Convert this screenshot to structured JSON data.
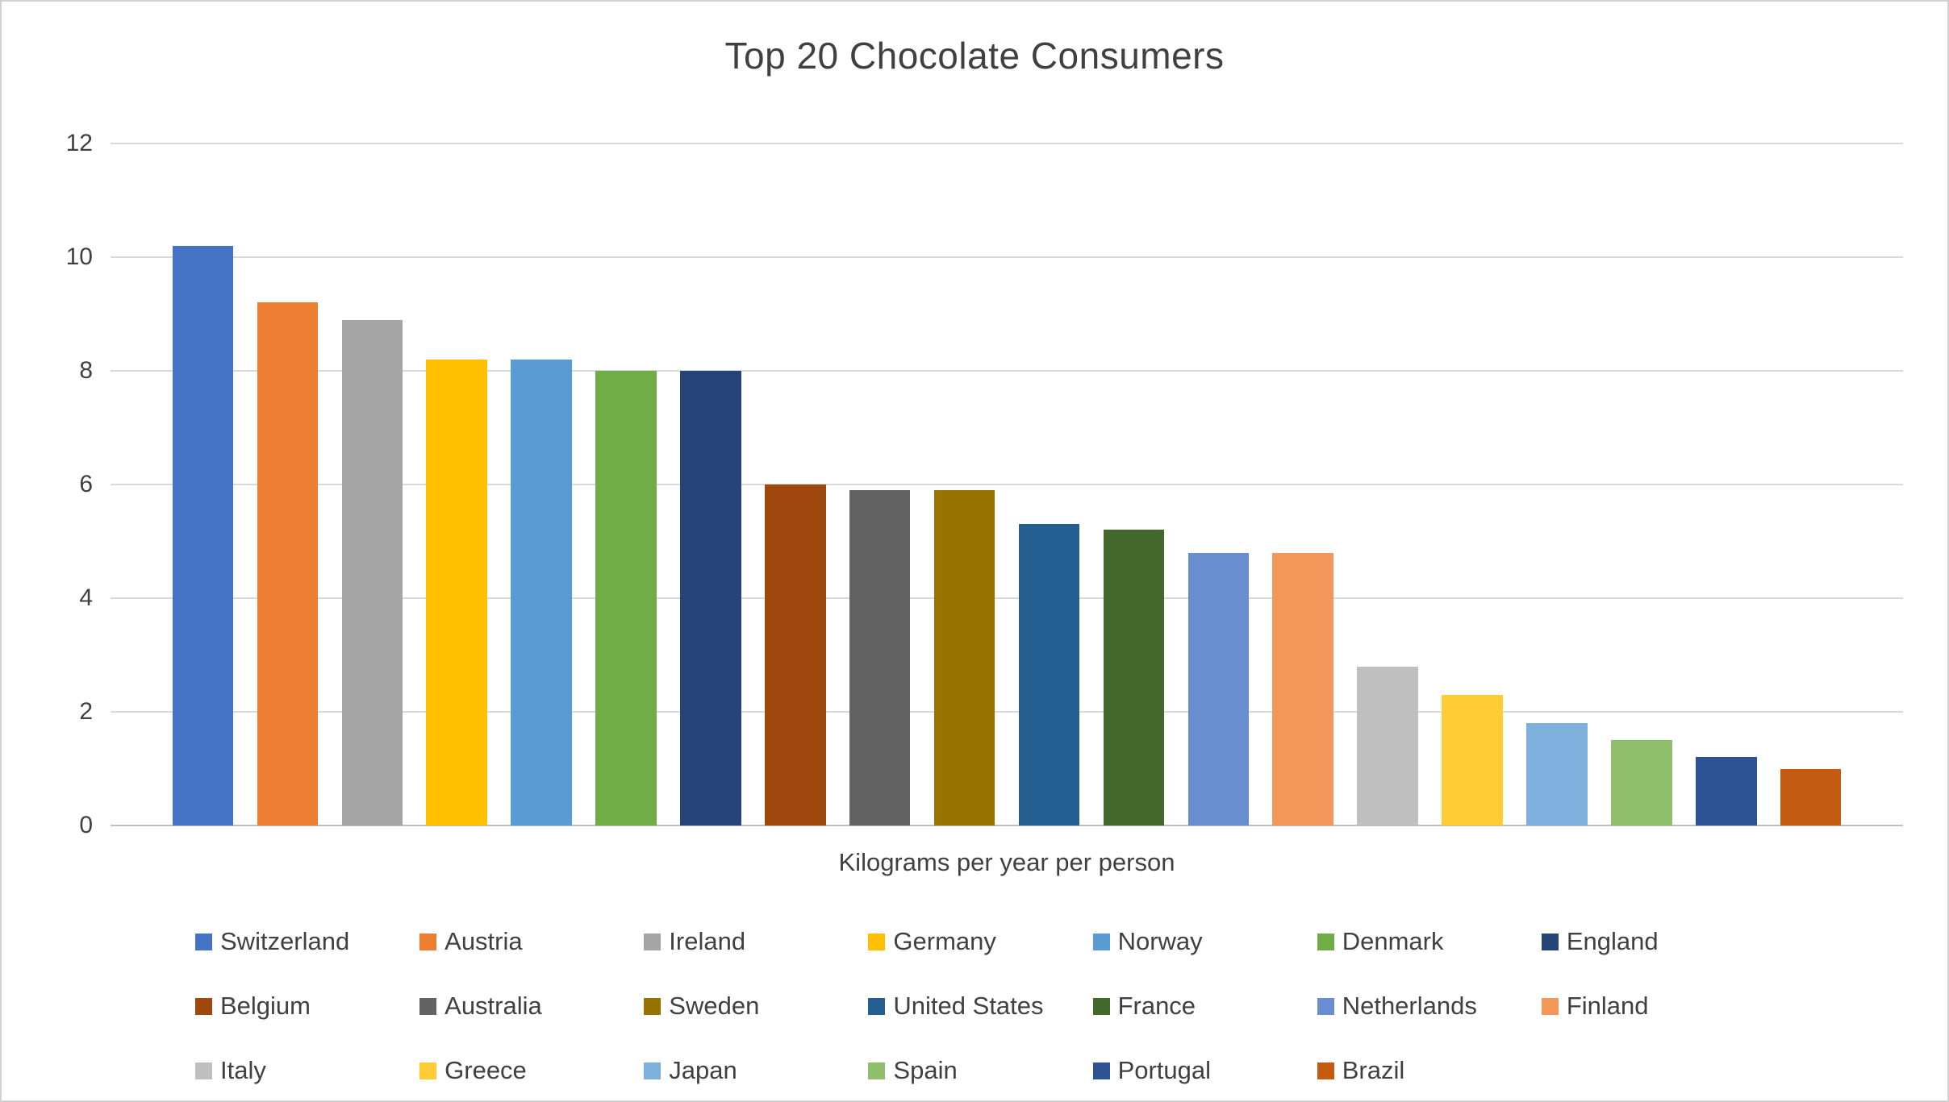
{
  "chart_data": {
    "type": "bar",
    "title": "Top 20 Chocolate Consumers",
    "xlabel": "Kilograms per year per person",
    "ylabel": "",
    "ylim": [
      0,
      12
    ],
    "yticks": [
      0,
      2,
      4,
      6,
      8,
      10,
      12
    ],
    "grid": true,
    "legend_position": "bottom",
    "series": [
      {
        "name": "Switzerland",
        "value": 10.2,
        "color": "#4472C4"
      },
      {
        "name": "Austria",
        "value": 9.2,
        "color": "#ED7D31"
      },
      {
        "name": "Ireland",
        "value": 8.9,
        "color": "#A5A5A5"
      },
      {
        "name": "Germany",
        "value": 8.2,
        "color": "#FFC000"
      },
      {
        "name": "Norway",
        "value": 8.2,
        "color": "#5B9BD5"
      },
      {
        "name": "Denmark",
        "value": 8.0,
        "color": "#70AD47"
      },
      {
        "name": "England",
        "value": 8.0,
        "color": "#264478"
      },
      {
        "name": "Belgium",
        "value": 6.0,
        "color": "#9E480E"
      },
      {
        "name": "Australia",
        "value": 5.9,
        "color": "#636363"
      },
      {
        "name": "Sweden",
        "value": 5.9,
        "color": "#997300"
      },
      {
        "name": "United States",
        "value": 5.3,
        "color": "#255E91"
      },
      {
        "name": "France",
        "value": 5.2,
        "color": "#43682B"
      },
      {
        "name": "Netherlands",
        "value": 4.8,
        "color": "#698ED0"
      },
      {
        "name": "Finland",
        "value": 4.8,
        "color": "#F1975A"
      },
      {
        "name": "Italy",
        "value": 2.8,
        "color": "#BFBFBF"
      },
      {
        "name": "Greece",
        "value": 2.3,
        "color": "#FFCD33"
      },
      {
        "name": "Japan",
        "value": 1.8,
        "color": "#7EB0DE"
      },
      {
        "name": "Spain",
        "value": 1.5,
        "color": "#8FBF6B"
      },
      {
        "name": "Portugal",
        "value": 1.2,
        "color": "#2E5395"
      },
      {
        "name": "Brazil",
        "value": 1.0,
        "color": "#C55A11"
      }
    ]
  }
}
